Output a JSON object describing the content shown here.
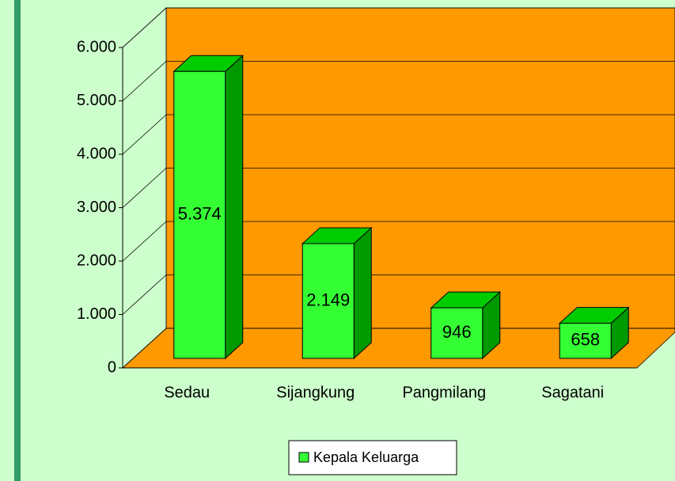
{
  "chart_data": {
    "type": "bar3d",
    "categories": [
      "Sedau",
      "Sijangkung",
      "Pangmilang",
      "Sagatani"
    ],
    "series": [
      {
        "name": "Kepala Keluarga",
        "color": "#33ff33",
        "values": [
          5374,
          2149,
          946,
          658
        ],
        "value_labels": [
          "5.374",
          "2.149",
          "946",
          "658"
        ]
      }
    ],
    "ylim": [
      0,
      6000
    ],
    "yticks": [
      0,
      {
        "value": 1000,
        "label": "1.000"
      },
      {
        "value": 2000,
        "label": "2.000"
      },
      {
        "value": 3000,
        "label": "3.000"
      },
      {
        "value": 4000,
        "label": "4.000"
      },
      {
        "value": 5000,
        "label": "5.000"
      },
      {
        "value": 6000,
        "label": "6.000"
      }
    ],
    "grid": true,
    "legend": "bottom",
    "wall_color": "#ff9900"
  }
}
